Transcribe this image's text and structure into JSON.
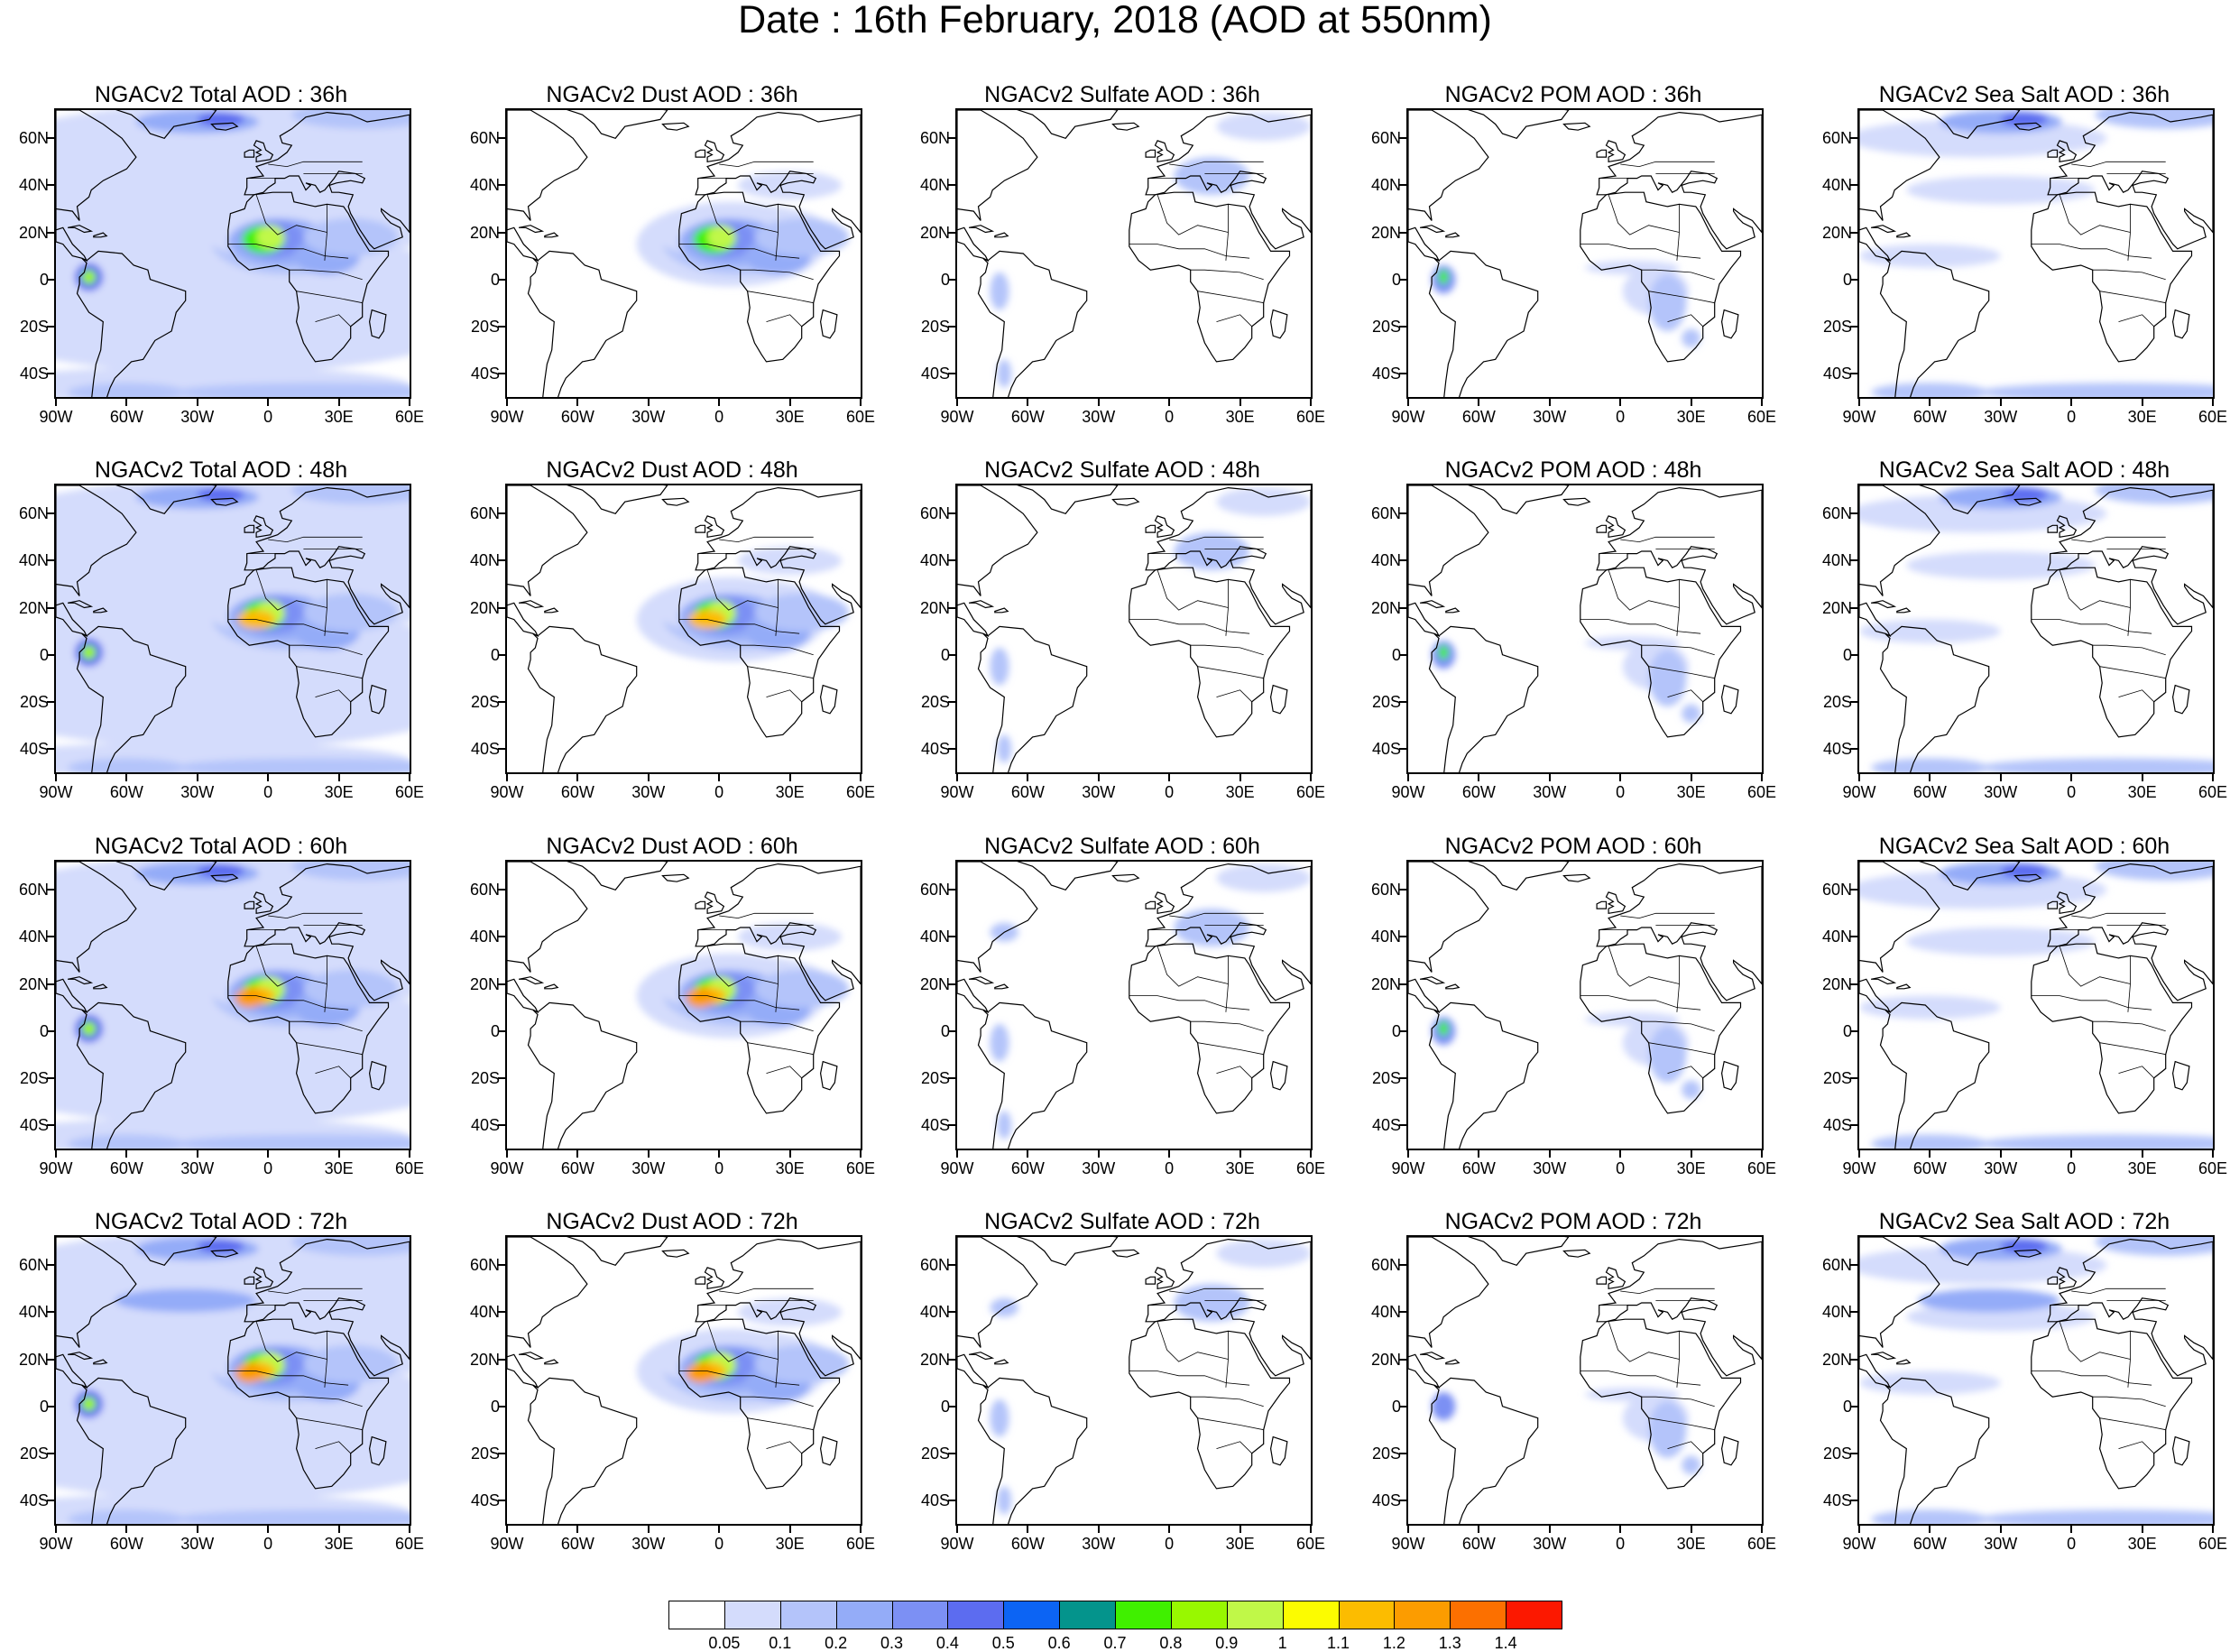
{
  "title": "Date : 16th February, 2018 (AOD at 550nm)",
  "lat_labels": [
    "60N",
    "40N",
    "20N",
    "0",
    "20S",
    "40S"
  ],
  "lon_labels": [
    "90W",
    "60W",
    "30W",
    "0",
    "30E",
    "60E"
  ],
  "panels": [
    [
      "NGACv2 Total AOD : 36h",
      "NGACv2 Dust AOD : 36h",
      "NGACv2 Sulfate AOD : 36h",
      "NGACv2 POM AOD : 36h",
      "NGACv2 Sea Salt AOD : 36h"
    ],
    [
      "NGACv2 Total AOD : 48h",
      "NGACv2 Dust AOD : 48h",
      "NGACv2 Sulfate AOD : 48h",
      "NGACv2 POM AOD : 48h",
      "NGACv2 Sea Salt AOD : 48h"
    ],
    [
      "NGACv2 Total AOD : 60h",
      "NGACv2 Dust AOD : 60h",
      "NGACv2 Sulfate AOD : 60h",
      "NGACv2 POM AOD : 60h",
      "NGACv2 Sea Salt AOD : 60h"
    ],
    [
      "NGACv2 Total AOD : 72h",
      "NGACv2 Dust AOD : 72h",
      "NGACv2 Sulfate AOD : 72h",
      "NGACv2 POM AOD : 72h",
      "NGACv2 Sea Salt  AOD : 72h"
    ]
  ],
  "map_extent": {
    "lon_range": [
      -90,
      60
    ],
    "lat_range": [
      -50,
      72
    ]
  },
  "colorbar": {
    "levels": [
      "0.05",
      "0.1",
      "0.2",
      "0.3",
      "0.4",
      "0.5",
      "0.6",
      "0.7",
      "0.8",
      "0.9",
      "1",
      "1.1",
      "1.2",
      "1.3",
      "1.4"
    ],
    "colors": [
      "#ffffff",
      "#d4dcfc",
      "#b4c4fa",
      "#94acf8",
      "#7c90f4",
      "#5c6cf0",
      "#0c64f4",
      "#04948c",
      "#40f000",
      "#98f800",
      "#c0f848",
      "#fcfc00",
      "#fcbc00",
      "#fc9c00",
      "#fc7000",
      "#fc1800"
    ]
  }
}
